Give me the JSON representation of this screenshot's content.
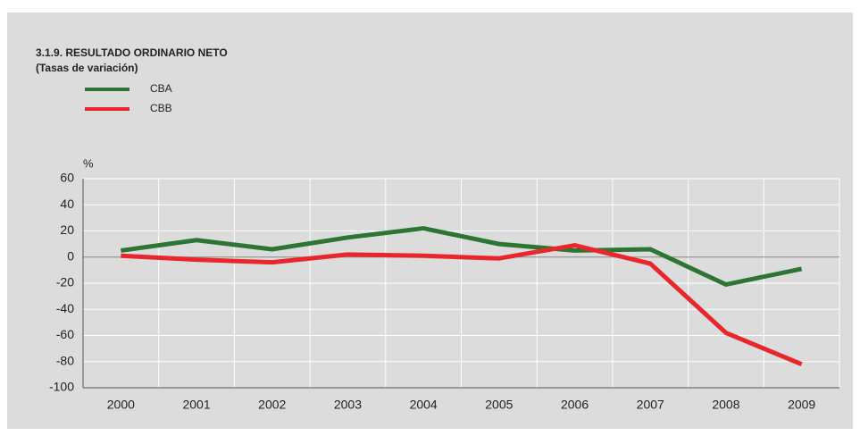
{
  "chart_data": {
    "type": "line",
    "title": "3.1.9. RESULTADO ORDINARIO NETO",
    "subtitle": "(Tasas de variación)",
    "y_label": "%",
    "categories": [
      "2000",
      "2001",
      "2002",
      "2003",
      "2004",
      "2005",
      "2006",
      "2007",
      "2008",
      "2009"
    ],
    "series": [
      {
        "name": "CBA",
        "color": "#2e7534",
        "values": [
          5,
          13,
          6,
          15,
          22,
          10,
          5,
          6,
          -21,
          -9
        ]
      },
      {
        "name": "CBB",
        "color": "#e8262b",
        "values": [
          1,
          -2,
          -4,
          2,
          1,
          -1,
          9,
          -5,
          -58,
          -82
        ]
      }
    ],
    "ylim": [
      -100,
      60
    ],
    "yticks": [
      -100,
      -80,
      -60,
      -40,
      -20,
      0,
      20,
      40,
      60
    ],
    "grid": true,
    "legend": "top-left"
  }
}
